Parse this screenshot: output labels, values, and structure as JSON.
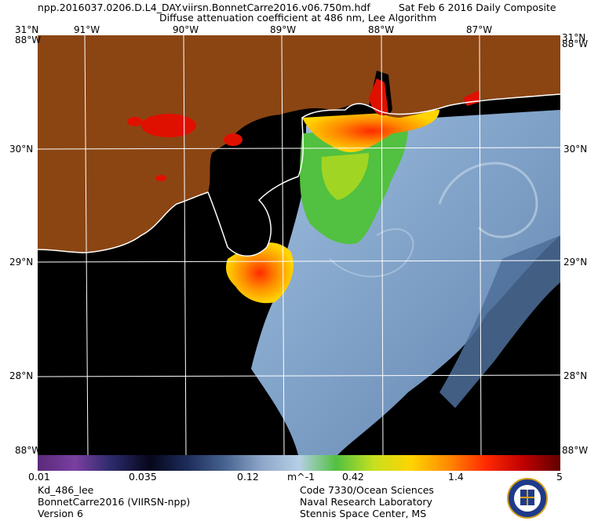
{
  "header": {
    "filename": "npp.2016037.0206.D.L4_DAY.viirsn.BonnetCarre2016.v06.750m.hdf",
    "date": "Sat Feb  6 2016 Daily Composite",
    "subtitle": "Diffuse attenuation coefficient at 486 nm, Lee Algorithm"
  },
  "map": {
    "lon_min": -91.5,
    "lon_max": -86.6,
    "lat_min": 27.2,
    "lat_max": 31.0,
    "lon_ticks": [
      "91°W",
      "90°W",
      "89°W",
      "88°W",
      "87°W"
    ],
    "lat_ticks": [
      "30°N",
      "29°N",
      "28°N"
    ],
    "corner_top_left": "31°N",
    "corner_left": "88°W",
    "corner_top_right": "31°N",
    "corner_right": "88°W",
    "corner_bottom_left": "88°W",
    "corner_bottom_right": "88°W",
    "colors": {
      "land": "#8b4513",
      "no_data": "#000000",
      "coast": "#ffffff",
      "grid": "#ffffff"
    }
  },
  "colorbar": {
    "scale": "log",
    "min": 0.01,
    "max": 5,
    "labels": [
      "0.01",
      "0.035",
      "0.12",
      "m^-1",
      "0.42",
      "1.4",
      "5"
    ],
    "stops": [
      "#5a2a7a",
      "#7a3fa0",
      "#2a2a6a",
      "#06061a",
      "#1c2c5a",
      "#46628e",
      "#8ea6c8",
      "#b6cfe6",
      "#52c040",
      "#c6e020",
      "#ffd400",
      "#ff8a00",
      "#ff2a00",
      "#c00000",
      "#600000"
    ]
  },
  "footer": {
    "left": [
      "Kd_486_lee",
      "BonnetCarre2016 (VIIRSN-npp)",
      "Version 6"
    ],
    "right": [
      "Code 7330/Ocean Sciences",
      "Naval Research Laboratory",
      "Stennis Space Center, MS"
    ]
  },
  "logo": {
    "name": "nrl-seal",
    "text": "NAVAL RESEARCH LABORATORY"
  }
}
